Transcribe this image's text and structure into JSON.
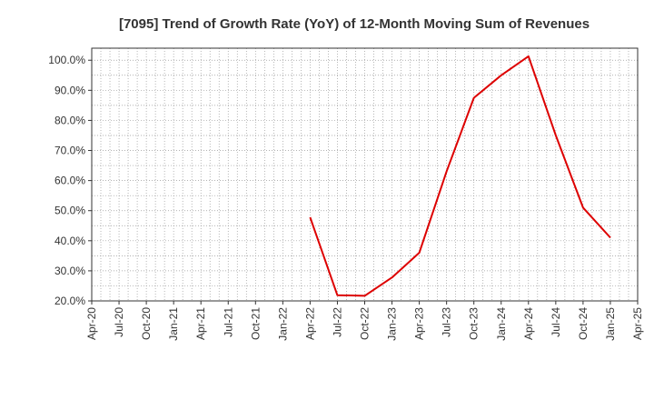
{
  "chart_data": {
    "type": "line",
    "title": "[7095]  Trend of Growth Rate (YoY) of 12-Month Moving Sum of Revenues",
    "xlabel": "",
    "ylabel": "",
    "ylim": [
      20,
      104
    ],
    "y_ticks": [
      20,
      30,
      40,
      50,
      60,
      70,
      80,
      90,
      100
    ],
    "y_tick_labels": [
      "20.0%",
      "30.0%",
      "40.0%",
      "50.0%",
      "60.0%",
      "70.0%",
      "80.0%",
      "90.0%",
      "100.0%"
    ],
    "x_tick_labels": [
      "Apr-20",
      "Jul-20",
      "Oct-20",
      "Jan-21",
      "Apr-21",
      "Jul-21",
      "Oct-21",
      "Jan-22",
      "Apr-22",
      "Jul-22",
      "Oct-22",
      "Jan-23",
      "Apr-23",
      "Jul-23",
      "Oct-23",
      "Jan-24",
      "Apr-24",
      "Jul-24",
      "Oct-24",
      "Jan-25",
      "Apr-25"
    ],
    "grid": true,
    "colors": {
      "line": "#dd0000",
      "grid": "#999999",
      "axis": "#333333"
    },
    "series": [
      {
        "x": [
          "Apr-22",
          "Jul-22",
          "Oct-22",
          "Jan-23",
          "Apr-23",
          "Jul-23",
          "Oct-23",
          "Jan-24",
          "Apr-24",
          "Jul-24",
          "Oct-24",
          "Jan-25"
        ],
        "values": [
          47.8,
          21.9,
          21.7,
          27.8,
          36.0,
          63.0,
          87.5,
          95.0,
          101.3,
          75.0,
          51.0,
          41.0
        ]
      }
    ]
  }
}
